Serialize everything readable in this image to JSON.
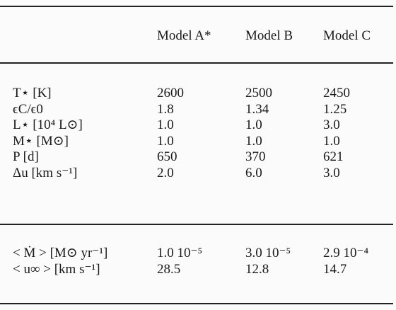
{
  "table": {
    "header": [
      "Model A*",
      "Model B",
      "Model C"
    ],
    "groups": [
      {
        "rows": [
          {
            "label": "T⋆ [K]",
            "cells": [
              "2600",
              "2500",
              "2450"
            ]
          },
          {
            "label": "ϵC/ϵ0",
            "cells": [
              "1.8",
              "1.34",
              "1.25"
            ]
          },
          {
            "label": "L⋆ [10⁴ L⊙]",
            "cells": [
              "1.0",
              "1.0",
              "3.0"
            ]
          },
          {
            "label": "M⋆ [M⊙]",
            "cells": [
              "1.0",
              "1.0",
              "1.0"
            ]
          },
          {
            "label": "P [d]",
            "cells": [
              "650",
              "370",
              "621"
            ]
          },
          {
            "label": "Δu [km s⁻¹]",
            "cells": [
              "2.0",
              "6.0",
              "3.0"
            ]
          }
        ]
      },
      {
        "rows": [
          {
            "label": "< Ṁ > [M⊙ yr⁻¹]",
            "cells": [
              "1.0 10⁻⁵",
              "3.0 10⁻⁵",
              "2.9 10⁻⁴"
            ]
          },
          {
            "label": "< u∞ > [km s⁻¹]",
            "cells": [
              "28.5",
              "12.8",
              "14.7"
            ]
          }
        ]
      }
    ]
  }
}
